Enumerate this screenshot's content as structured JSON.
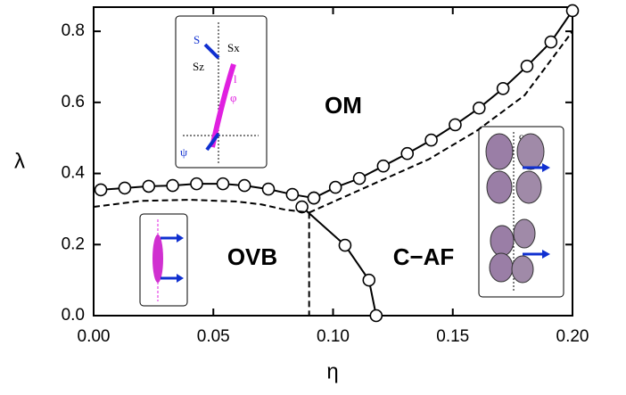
{
  "chart_data": {
    "type": "line",
    "x_label": "η",
    "y_label": "λ",
    "xlim": [
      0,
      0.2
    ],
    "ylim": [
      0,
      0.868
    ],
    "xticks": [
      {
        "value": 0,
        "label": "0.00"
      },
      0.05,
      {
        "value": 0.1,
        "label": "0.10"
      },
      0.15,
      {
        "value": 0.2,
        "label": "0.20"
      }
    ],
    "yticks": [
      {
        "value": 0,
        "label": "0.0"
      },
      0.2,
      0.4,
      0.6,
      0.8
    ],
    "series": [
      {
        "color": "#000000",
        "marker": "circle",
        "dashed": false,
        "x": [
          0.003,
          0.013,
          0.023,
          0.033,
          0.043,
          0.054,
          0.063,
          0.073,
          0.083,
          0.092
        ],
        "values": [
          0.354,
          0.359,
          0.364,
          0.366,
          0.371,
          0.371,
          0.366,
          0.356,
          0.341,
          0.331
        ]
      },
      {
        "color": "#000000",
        "marker": "circle",
        "dashed": false,
        "x": [
          0.092,
          0.101,
          0.111,
          0.121,
          0.131,
          0.141,
          0.151,
          0.161,
          0.171,
          0.181,
          0.191,
          0.2
        ],
        "values": [
          0.331,
          0.361,
          0.386,
          0.421,
          0.456,
          0.494,
          0.537,
          0.584,
          0.639,
          0.702,
          0.77,
          0.858
        ]
      },
      {
        "color": "#000000",
        "marker": "circle",
        "dashed": false,
        "x": [
          0.087,
          0.105,
          0.115,
          0.118
        ],
        "values": [
          0.306,
          0.198,
          0.1,
          0.0
        ]
      },
      {
        "color": "#000000",
        "marker": "none",
        "dashed": true,
        "x": [
          0,
          0.02,
          0.04,
          0.06,
          0.07,
          0.08,
          0.09
        ],
        "values": [
          0.306,
          0.323,
          0.326,
          0.321,
          0.313,
          0.298,
          0.29
        ]
      },
      {
        "color": "#000000",
        "marker": "none",
        "dashed": true,
        "x": [
          0.09,
          0.1,
          0.12,
          0.14,
          0.16,
          0.18,
          0.2
        ],
        "values": [
          0.29,
          0.32,
          0.38,
          0.44,
          0.52,
          0.62,
          0.8
        ]
      },
      {
        "color": "#000000",
        "marker": "none",
        "dashed": true,
        "x": [
          0.09,
          0.09
        ],
        "values": [
          0.29,
          0
        ]
      }
    ],
    "annotations": [
      "OM",
      "OVB",
      "C−AF"
    ],
    "inset_labels": [
      "S",
      "Sx",
      "Sz",
      "l",
      "φ",
      "ψ",
      "c"
    ]
  }
}
